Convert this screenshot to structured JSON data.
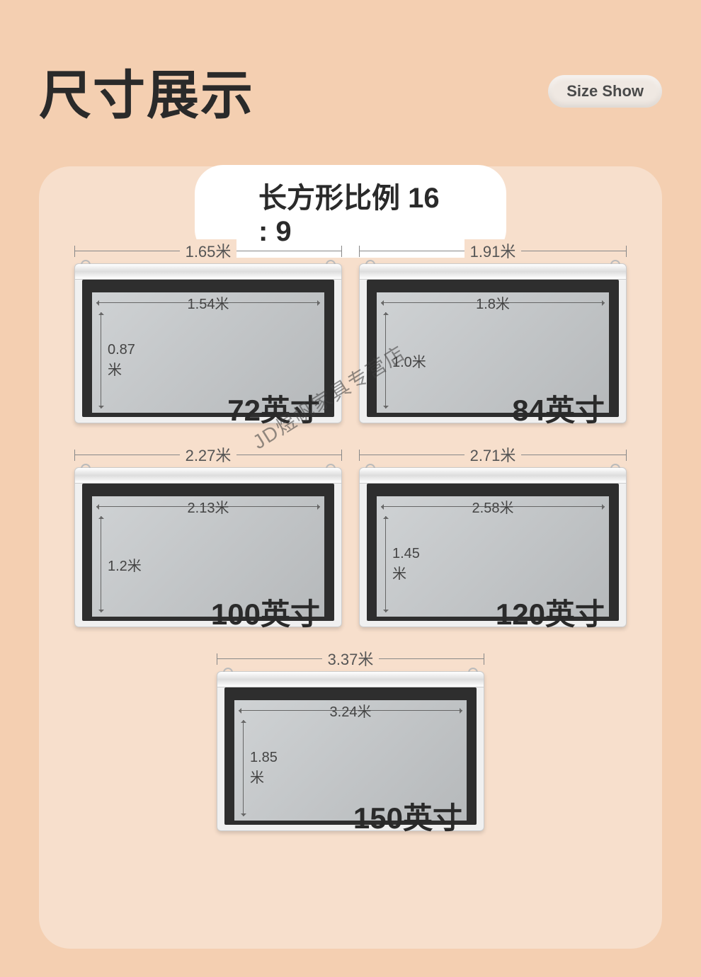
{
  "header": {
    "title": "尺寸展示",
    "badge": "Size Show"
  },
  "ratio_label": "长方形比例  16 : 9",
  "watermark": "JD煜帆家具专营店",
  "colors": {
    "page_bg": "#f4cfb1",
    "panel_bg": "#f7dfcc",
    "text": "#2a2a2a"
  },
  "screens": [
    {
      "outer_w": "1.65米",
      "inner_w": "1.54米",
      "inner_h": "0.87米",
      "size": "72英寸"
    },
    {
      "outer_w": "1.91米",
      "inner_w": "1.8米",
      "inner_h": "1.0米",
      "size": "84英寸"
    },
    {
      "outer_w": "2.27米",
      "inner_w": "2.13米",
      "inner_h": "1.2米",
      "size": "100英寸"
    },
    {
      "outer_w": "2.71米",
      "inner_w": "2.58米",
      "inner_h": "1.45米",
      "size": "120英寸"
    },
    {
      "outer_w": "3.37米",
      "inner_w": "3.24米",
      "inner_h": "1.85米",
      "size": "150英寸"
    }
  ]
}
